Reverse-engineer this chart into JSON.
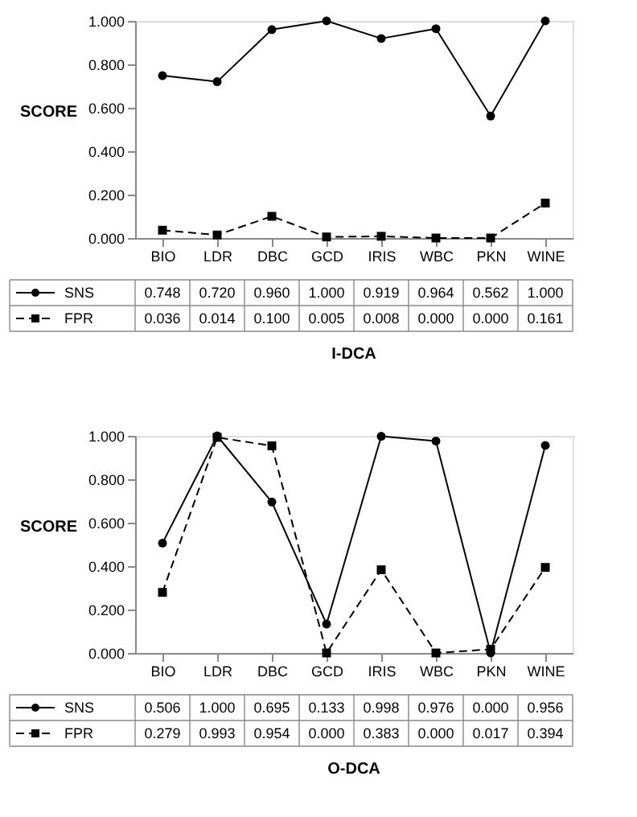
{
  "chart_data": [
    {
      "type": "line",
      "title": "I-DCA",
      "ylabel": "SCORE",
      "categories": [
        "BIO",
        "LDR",
        "DBC",
        "GCD",
        "IRIS",
        "WBC",
        "PKN",
        "WINE"
      ],
      "series": [
        {
          "name": "SNS",
          "color": "#000000",
          "marker": "circle",
          "line_style": "solid",
          "values": [
            0.748,
            0.72,
            0.96,
            1.0,
            0.919,
            0.964,
            0.562,
            1.0
          ],
          "value_labels": [
            "0.748",
            "0.720",
            "0.960",
            "1.000",
            "0.919",
            "0.964",
            "0.562",
            "1.000"
          ]
        },
        {
          "name": "FPR",
          "color": "#000000",
          "marker": "square",
          "line_style": "dashed",
          "values": [
            0.036,
            0.014,
            0.1,
            0.005,
            0.008,
            0.0,
            0.0,
            0.161
          ],
          "value_labels": [
            "0.036",
            "0.014",
            "0.100",
            "0.005",
            "0.008",
            "0.000",
            "0.000",
            "0.161"
          ]
        }
      ],
      "ylim": [
        0,
        1
      ],
      "yticks": [
        {
          "value": 0,
          "label": "0.000"
        },
        {
          "value": 0.2,
          "label": "0.200"
        },
        {
          "value": 0.4,
          "label": "0.400"
        },
        {
          "value": 0.6,
          "label": "0.600"
        },
        {
          "value": 0.8,
          "label": "0.800"
        },
        {
          "value": 1,
          "label": "1.000"
        }
      ],
      "grid": false,
      "legend": "bottom"
    },
    {
      "type": "line",
      "title": "O-DCA",
      "ylabel": "SCORE",
      "categories": [
        "BIO",
        "LDR",
        "DBC",
        "GCD",
        "IRIS",
        "WBC",
        "PKN",
        "WINE"
      ],
      "series": [
        {
          "name": "SNS",
          "color": "#000000",
          "marker": "circle",
          "line_style": "solid",
          "values": [
            0.506,
            1.0,
            0.695,
            0.133,
            0.998,
            0.976,
            0.0,
            0.956
          ],
          "value_labels": [
            "0.506",
            "1.000",
            "0.695",
            "0.133",
            "0.998",
            "0.976",
            "0.000",
            "0.956"
          ]
        },
        {
          "name": "FPR",
          "color": "#000000",
          "marker": "square",
          "line_style": "dashed",
          "values": [
            0.279,
            0.993,
            0.954,
            0.0,
            0.383,
            0.0,
            0.017,
            0.394
          ],
          "value_labels": [
            "0.279",
            "0.993",
            "0.954",
            "0.000",
            "0.383",
            "0.000",
            "0.017",
            "0.394"
          ]
        }
      ],
      "ylim": [
        0,
        1
      ],
      "yticks": [
        {
          "value": 0,
          "label": "0.000"
        },
        {
          "value": 0.2,
          "label": "0.200"
        },
        {
          "value": 0.4,
          "label": "0.400"
        },
        {
          "value": 0.6,
          "label": "0.600"
        },
        {
          "value": 0.8,
          "label": "0.800"
        },
        {
          "value": 1,
          "label": "1.000"
        }
      ],
      "grid": false,
      "legend": "bottom"
    }
  ]
}
